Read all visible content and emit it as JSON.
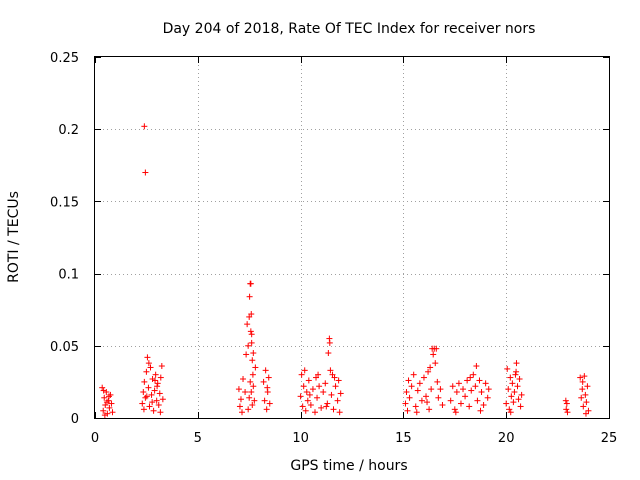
{
  "chart_data": {
    "type": "scatter",
    "title": "Day 204 of 2018, Rate Of TEC Index for receiver nors",
    "xlabel": "GPS time / hours",
    "ylabel": "ROTI / TECUs",
    "xlim": [
      0,
      25
    ],
    "ylim": [
      0,
      0.25
    ],
    "xticks": [
      0,
      5,
      10,
      15,
      20,
      25
    ],
    "xtick_labels": [
      "0",
      "5",
      "10",
      "15",
      "20",
      "25"
    ],
    "yticks": [
      0,
      0.05,
      0.1,
      0.15,
      0.2,
      0.25
    ],
    "ytick_labels": [
      "0",
      "0.05",
      "0.1",
      "0.15",
      "0.2",
      "0.25"
    ],
    "grid": true,
    "marker": "+",
    "color": "#ff0000",
    "series": [
      {
        "name": "ROTI",
        "points": [
          [
            0.35,
            0.021
          ],
          [
            0.4,
            0.005
          ],
          [
            0.45,
            0.014
          ],
          [
            0.5,
            0.009
          ],
          [
            0.55,
            0.018
          ],
          [
            0.6,
            0.003
          ],
          [
            0.65,
            0.012
          ],
          [
            0.7,
            0.007
          ],
          [
            0.75,
            0.016
          ],
          [
            0.8,
            0.01
          ],
          [
            0.85,
            0.004
          ],
          [
            0.42,
            0.019
          ],
          [
            0.58,
            0.011
          ],
          [
            0.68,
            0.015
          ],
          [
            0.48,
            0.002
          ],
          [
            2.4,
            0.202
          ],
          [
            2.45,
            0.17
          ],
          [
            2.3,
            0.01
          ],
          [
            2.35,
            0.018
          ],
          [
            2.4,
            0.025
          ],
          [
            2.45,
            0.014
          ],
          [
            2.5,
            0.032
          ],
          [
            2.55,
            0.042
          ],
          [
            2.6,
            0.021
          ],
          [
            2.65,
            0.008
          ],
          [
            2.7,
            0.035
          ],
          [
            2.75,
            0.016
          ],
          [
            2.8,
            0.027
          ],
          [
            2.85,
            0.005
          ],
          [
            2.9,
            0.019
          ],
          [
            2.95,
            0.03
          ],
          [
            3.0,
            0.012
          ],
          [
            3.05,
            0.024
          ],
          [
            3.1,
            0.009
          ],
          [
            3.15,
            0.017
          ],
          [
            3.2,
            0.028
          ],
          [
            3.25,
            0.036
          ],
          [
            3.3,
            0.013
          ],
          [
            2.38,
            0.006
          ],
          [
            2.62,
            0.038
          ],
          [
            2.78,
            0.011
          ],
          [
            3.02,
            0.022
          ],
          [
            3.18,
            0.004
          ],
          [
            2.52,
            0.015
          ],
          [
            2.92,
            0.026
          ],
          [
            7.0,
            0.02
          ],
          [
            7.05,
            0.008
          ],
          [
            7.1,
            0.013
          ],
          [
            7.15,
            0.004
          ],
          [
            7.2,
            0.027
          ],
          [
            7.3,
            0.018
          ],
          [
            7.35,
            0.044
          ],
          [
            7.4,
            0.065
          ],
          [
            7.45,
            0.05
          ],
          [
            7.5,
            0.07
          ],
          [
            7.52,
            0.084
          ],
          [
            7.55,
            0.093
          ],
          [
            7.58,
            0.093
          ],
          [
            7.6,
            0.072
          ],
          [
            7.62,
            0.058
          ],
          [
            7.65,
            0.04
          ],
          [
            7.68,
            0.03
          ],
          [
            7.7,
            0.022
          ],
          [
            7.75,
            0.012
          ],
          [
            7.8,
            0.035
          ],
          [
            7.45,
            0.006
          ],
          [
            7.5,
            0.014
          ],
          [
            7.55,
            0.025
          ],
          [
            7.6,
            0.018
          ],
          [
            7.65,
            0.009
          ],
          [
            7.7,
            0.045
          ],
          [
            7.58,
            0.06
          ],
          [
            7.62,
            0.052
          ],
          [
            8.2,
            0.025
          ],
          [
            8.25,
            0.012
          ],
          [
            8.3,
            0.033
          ],
          [
            8.35,
            0.006
          ],
          [
            8.4,
            0.018
          ],
          [
            8.45,
            0.028
          ],
          [
            8.5,
            0.01
          ],
          [
            8.38,
            0.021
          ],
          [
            10.0,
            0.015
          ],
          [
            10.05,
            0.03
          ],
          [
            10.1,
            0.008
          ],
          [
            10.15,
            0.022
          ],
          [
            10.2,
            0.033
          ],
          [
            10.25,
            0.005
          ],
          [
            10.3,
            0.018
          ],
          [
            10.35,
            0.012
          ],
          [
            10.4,
            0.026
          ],
          [
            10.5,
            0.009
          ],
          [
            10.6,
            0.02
          ],
          [
            10.7,
            0.004
          ],
          [
            10.75,
            0.028
          ],
          [
            10.8,
            0.014
          ],
          [
            10.9,
            0.022
          ],
          [
            11.0,
            0.007
          ],
          [
            11.1,
            0.018
          ],
          [
            11.2,
            0.024
          ],
          [
            11.3,
            0.01
          ],
          [
            11.35,
            0.045
          ],
          [
            11.4,
            0.055
          ],
          [
            11.42,
            0.052
          ],
          [
            11.45,
            0.033
          ],
          [
            11.5,
            0.016
          ],
          [
            11.55,
            0.03
          ],
          [
            11.6,
            0.006
          ],
          [
            11.7,
            0.022
          ],
          [
            11.8,
            0.012
          ],
          [
            11.85,
            0.026
          ],
          [
            11.9,
            0.004
          ],
          [
            11.95,
            0.017
          ],
          [
            10.45,
            0.016
          ],
          [
            10.85,
            0.03
          ],
          [
            11.25,
            0.008
          ],
          [
            11.65,
            0.028
          ],
          [
            15.1,
            0.01
          ],
          [
            15.15,
            0.018
          ],
          [
            15.2,
            0.005
          ],
          [
            15.3,
            0.014
          ],
          [
            15.4,
            0.022
          ],
          [
            15.5,
            0.03
          ],
          [
            15.6,
            0.008
          ],
          [
            15.7,
            0.019
          ],
          [
            15.8,
            0.024
          ],
          [
            15.9,
            0.012
          ],
          [
            16.0,
            0.028
          ],
          [
            16.1,
            0.015
          ],
          [
            16.2,
            0.032
          ],
          [
            16.25,
            0.006
          ],
          [
            16.3,
            0.035
          ],
          [
            16.35,
            0.02
          ],
          [
            16.4,
            0.048
          ],
          [
            16.45,
            0.044
          ],
          [
            16.5,
            0.048
          ],
          [
            16.55,
            0.038
          ],
          [
            16.6,
            0.048
          ],
          [
            16.65,
            0.025
          ],
          [
            16.7,
            0.014
          ],
          [
            16.8,
            0.02
          ],
          [
            16.9,
            0.009
          ],
          [
            15.25,
            0.026
          ],
          [
            15.65,
            0.004
          ],
          [
            16.15,
            0.011
          ],
          [
            17.3,
            0.012
          ],
          [
            17.4,
            0.022
          ],
          [
            17.5,
            0.006
          ],
          [
            17.6,
            0.018
          ],
          [
            17.7,
            0.024
          ],
          [
            17.8,
            0.01
          ],
          [
            17.9,
            0.02
          ],
          [
            18.0,
            0.015
          ],
          [
            18.1,
            0.026
          ],
          [
            18.2,
            0.008
          ],
          [
            18.3,
            0.019
          ],
          [
            18.4,
            0.03
          ],
          [
            18.5,
            0.022
          ],
          [
            18.55,
            0.036
          ],
          [
            18.6,
            0.012
          ],
          [
            18.7,
            0.026
          ],
          [
            18.8,
            0.018
          ],
          [
            18.9,
            0.009
          ],
          [
            19.0,
            0.024
          ],
          [
            19.1,
            0.014
          ],
          [
            19.15,
            0.02
          ],
          [
            17.55,
            0.004
          ],
          [
            18.25,
            0.028
          ],
          [
            18.75,
            0.005
          ],
          [
            20.0,
            0.01
          ],
          [
            20.05,
            0.034
          ],
          [
            20.1,
            0.02
          ],
          [
            20.15,
            0.006
          ],
          [
            20.2,
            0.028
          ],
          [
            20.25,
            0.015
          ],
          [
            20.3,
            0.024
          ],
          [
            20.35,
            0.011
          ],
          [
            20.4,
            0.018
          ],
          [
            20.45,
            0.03
          ],
          [
            20.5,
            0.038
          ],
          [
            20.55,
            0.022
          ],
          [
            20.6,
            0.013
          ],
          [
            20.65,
            0.027
          ],
          [
            20.7,
            0.008
          ],
          [
            20.75,
            0.016
          ],
          [
            20.22,
            0.004
          ],
          [
            20.48,
            0.032
          ],
          [
            22.9,
            0.012
          ],
          [
            22.92,
            0.006
          ],
          [
            22.95,
            0.01
          ],
          [
            22.98,
            0.004
          ],
          [
            23.6,
            0.028
          ],
          [
            23.65,
            0.014
          ],
          [
            23.7,
            0.02
          ],
          [
            23.75,
            0.008
          ],
          [
            23.8,
            0.029
          ],
          [
            23.85,
            0.016
          ],
          [
            23.9,
            0.011
          ],
          [
            23.95,
            0.022
          ],
          [
            24.0,
            0.005
          ],
          [
            23.72,
            0.025
          ],
          [
            23.88,
            0.003
          ]
        ]
      }
    ]
  }
}
